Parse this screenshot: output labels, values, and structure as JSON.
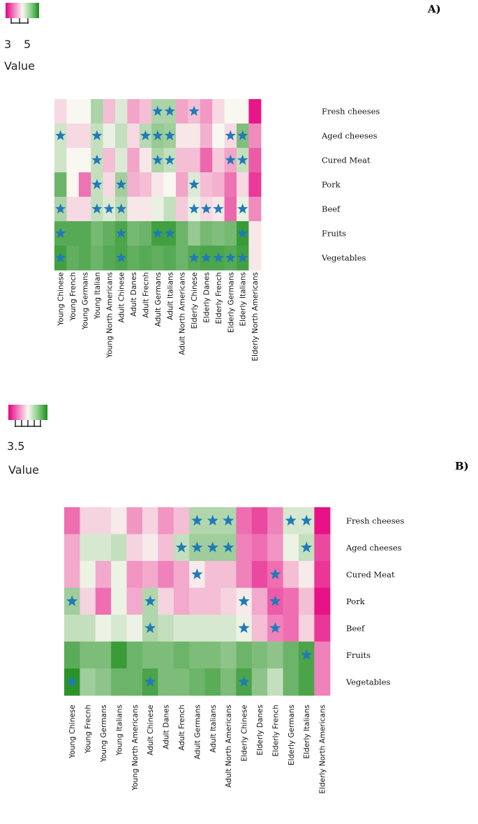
{
  "colors": {
    "low": "#e6007e",
    "mid": "#f8f8f0",
    "high": "#1a8c1a",
    "star": "#1f7ab8"
  },
  "chart_data": [
    {
      "type": "heatmap",
      "panel_label": "A)",
      "legend": {
        "title": "Value",
        "tick_labels": [
          "3",
          "5"
        ],
        "range": [
          2,
          6
        ]
      },
      "rows": [
        "Fresh cheeses",
        "Aged cheeses",
        "Cured Meat",
        "Pork",
        "Beef",
        "Fruits",
        "Vegetables"
      ],
      "columns": [
        "Young Chinese",
        "Young French",
        "Young Germans",
        "Young Italian",
        "Young North Americans",
        "Adult Chinese",
        "Adult Danes",
        "Adult Frecnh",
        "Adult Germans",
        "Adult Italians",
        "Adult North Americans",
        "Elderly Chinese",
        "Elderly Danes",
        "Elderly French",
        "Elderly Germans",
        "Elderly Italians",
        "Elderly North Americans"
      ],
      "values": [
        [
          3.8,
          4.0,
          4.0,
          4.6,
          3.6,
          4.2,
          3.4,
          3.6,
          4.6,
          4.6,
          3.4,
          3.6,
          3.3,
          3.8,
          4.0,
          4.0,
          2.2
        ],
        [
          4.3,
          3.8,
          3.8,
          4.4,
          4.1,
          4.4,
          3.8,
          4.5,
          4.8,
          4.7,
          3.9,
          3.9,
          3.5,
          4.0,
          3.8,
          5.0,
          3.2
        ],
        [
          4.3,
          4.0,
          4.0,
          4.4,
          3.6,
          4.2,
          3.4,
          3.9,
          4.6,
          4.4,
          3.6,
          3.6,
          2.9,
          3.7,
          3.4,
          4.4,
          2.8
        ],
        [
          5.2,
          4.0,
          3.0,
          4.4,
          3.8,
          4.7,
          3.5,
          3.6,
          3.9,
          4.0,
          3.4,
          4.2,
          3.6,
          3.5,
          3.0,
          3.8,
          2.5
        ],
        [
          4.6,
          3.8,
          3.8,
          4.4,
          4.2,
          4.5,
          3.9,
          3.9,
          4.1,
          4.4,
          3.7,
          4.1,
          3.8,
          3.9,
          2.9,
          4.1,
          3.2
        ],
        [
          5.4,
          5.4,
          5.4,
          5.1,
          5.3,
          5.5,
          5.1,
          5.2,
          5.6,
          5.6,
          5.2,
          4.8,
          5.1,
          5.0,
          5.1,
          5.7,
          3.9
        ],
        [
          5.6,
          5.3,
          5.4,
          5.2,
          5.4,
          5.5,
          5.3,
          5.4,
          5.3,
          5.4,
          5.2,
          5.4,
          5.5,
          5.5,
          5.4,
          5.6,
          3.9
        ]
      ],
      "stars": [
        [
          8,
          9,
          11
        ],
        [
          0,
          3,
          7,
          8,
          9,
          14,
          15
        ],
        [
          3,
          8,
          9,
          14,
          15
        ],
        [
          3,
          5,
          11
        ],
        [
          0,
          3,
          4,
          5,
          11,
          12,
          13,
          15
        ],
        [
          0,
          5,
          8,
          9,
          15
        ],
        [
          0,
          5,
          11,
          12,
          13,
          14,
          15
        ]
      ]
    },
    {
      "type": "heatmap",
      "panel_label": "B)",
      "legend": {
        "title": "Value",
        "tick_labels": [
          "3.5"
        ],
        "range": [
          3,
          5.5
        ]
      },
      "rows": [
        "Fresh cheeses",
        "Aged cheeses",
        "Cured Meat",
        "Pork",
        "Beef",
        "Fruits",
        "Vegetables"
      ],
      "columns": [
        "Young Chinese",
        "Young Frecnh",
        "Young Germans",
        "Young Italians",
        "Young North Americans",
        "Adult Chinese",
        "Adult Danes",
        "Adult French",
        "Adult Germans",
        "Adult Italians",
        "Adult North Americans",
        "Elderly Chinese",
        "Elderly Danes",
        "Elderly French",
        "Elderly Germans",
        "Elderly Italians",
        "Elderly North Americans"
      ],
      "values": [
        [
          3.6,
          4.1,
          4.1,
          4.2,
          3.8,
          4.1,
          3.8,
          4.0,
          4.6,
          4.6,
          4.6,
          3.6,
          3.4,
          3.7,
          4.4,
          4.4,
          3.1
        ],
        [
          3.9,
          4.4,
          4.4,
          4.5,
          4.1,
          4.2,
          4.0,
          4.5,
          4.7,
          4.7,
          4.7,
          3.7,
          3.6,
          3.8,
          4.3,
          4.5,
          3.4
        ],
        [
          3.9,
          4.3,
          3.9,
          4.3,
          3.8,
          3.9,
          3.7,
          3.9,
          4.2,
          4.0,
          4.0,
          3.7,
          3.4,
          3.6,
          4.0,
          4.2,
          3.3
        ],
        [
          4.7,
          4.1,
          3.6,
          4.3,
          3.9,
          4.6,
          4.1,
          3.9,
          4.0,
          4.0,
          4.1,
          4.2,
          3.9,
          3.5,
          3.6,
          4.0,
          3.1
        ],
        [
          4.5,
          4.5,
          4.3,
          4.4,
          4.3,
          4.6,
          4.5,
          4.4,
          4.4,
          4.4,
          4.4,
          4.3,
          4.0,
          3.7,
          3.6,
          4.1,
          3.3
        ],
        [
          5.1,
          4.9,
          4.9,
          5.3,
          5.0,
          4.9,
          4.9,
          5.0,
          4.9,
          4.9,
          4.8,
          5.0,
          4.9,
          4.8,
          5.0,
          5.2,
          3.7
        ],
        [
          5.4,
          4.7,
          4.8,
          5.0,
          5.0,
          5.2,
          4.9,
          4.9,
          5.0,
          5.1,
          4.9,
          5.2,
          4.8,
          4.5,
          5.0,
          5.2,
          3.7
        ]
      ],
      "stars": [
        [
          8,
          9,
          10,
          14,
          15
        ],
        [
          7,
          8,
          9,
          10,
          15
        ],
        [
          8,
          13
        ],
        [
          0,
          5,
          11,
          13
        ],
        [
          5,
          11,
          13
        ],
        [
          15
        ],
        [
          0,
          5,
          11
        ]
      ]
    }
  ]
}
